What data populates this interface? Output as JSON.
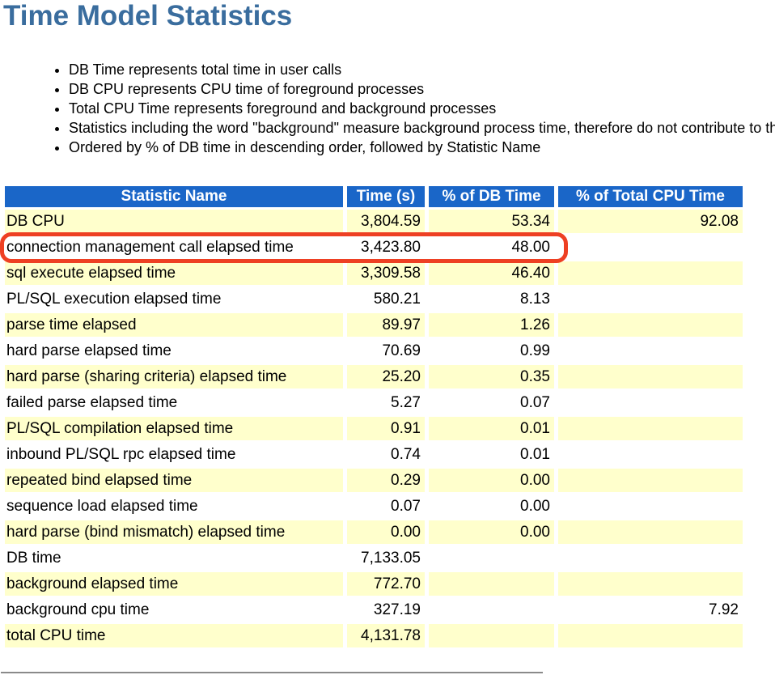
{
  "page": {
    "title": "Time Model Statistics",
    "notes": [
      "DB Time represents total time in user calls",
      "DB CPU represents CPU time of foreground processes",
      "Total CPU Time represents foreground and background processes",
      "Statistics including the word \"background\" measure background process time, therefore do not contribute to the DB time statistic",
      "Ordered by % of DB time in descending order, followed by Statistic Name"
    ]
  },
  "table": {
    "headers": [
      "Statistic Name",
      "Time (s)",
      "% of DB Time",
      "% of Total CPU Time"
    ],
    "rows": [
      [
        "DB CPU",
        "3,804.59",
        "53.34",
        "92.08"
      ],
      [
        "connection management call elapsed time",
        "3,423.80",
        "48.00",
        ""
      ],
      [
        "sql execute elapsed time",
        "3,309.58",
        "46.40",
        ""
      ],
      [
        "PL/SQL execution elapsed time",
        "580.21",
        "8.13",
        ""
      ],
      [
        "parse time elapsed",
        "89.97",
        "1.26",
        ""
      ],
      [
        "hard parse elapsed time",
        "70.69",
        "0.99",
        ""
      ],
      [
        "hard parse (sharing criteria) elapsed time",
        "25.20",
        "0.35",
        ""
      ],
      [
        "failed parse elapsed time",
        "5.27",
        "0.07",
        ""
      ],
      [
        "PL/SQL compilation elapsed time",
        "0.91",
        "0.01",
        ""
      ],
      [
        "inbound PL/SQL rpc elapsed time",
        "0.74",
        "0.01",
        ""
      ],
      [
        "repeated bind elapsed time",
        "0.29",
        "0.00",
        ""
      ],
      [
        "sequence load elapsed time",
        "0.07",
        "0.00",
        ""
      ],
      [
        "hard parse (bind mismatch) elapsed time",
        "0.00",
        "0.00",
        ""
      ],
      [
        "DB time",
        "7,133.05",
        "",
        ""
      ],
      [
        "background elapsed time",
        "772.70",
        "",
        ""
      ],
      [
        "background cpu time",
        "327.19",
        "",
        "7.92"
      ],
      [
        "total CPU time",
        "4,131.78",
        "",
        ""
      ]
    ]
  },
  "annotation": {
    "type": "highlight-box",
    "highlighted_row": "connection management call elapsed time",
    "color": "#EE4023"
  },
  "colors": {
    "title": "#3A6D9E",
    "header_bg": "#1A66C8",
    "header_text": "#FFFFFF",
    "row_stripe": "#FFFFCC",
    "row_plain": "#FFFFFF",
    "bottom_rule": "#8A8A8A"
  }
}
